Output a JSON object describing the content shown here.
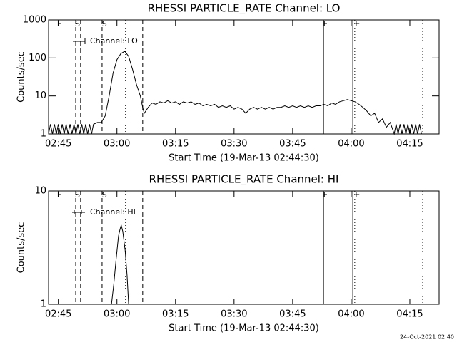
{
  "chart_data": [
    {
      "type": "line",
      "title": "RHESSI PARTICLE_RATE Channel: LO",
      "xlabel": "Start Time (19-Mar-13 02:44:30)",
      "ylabel": "Counts/sec",
      "log_y": true,
      "xlim": [
        162.5,
        262.5
      ],
      "ylim": [
        1,
        1000
      ],
      "xticks": [
        {
          "value": 165,
          "label": "02:45"
        },
        {
          "value": 180,
          "label": "03:00"
        },
        {
          "value": 195,
          "label": "03:15"
        },
        {
          "value": 210,
          "label": "03:30"
        },
        {
          "value": 225,
          "label": "03:45"
        },
        {
          "value": 240,
          "label": "04:00"
        },
        {
          "value": 255,
          "label": "04:15"
        }
      ],
      "yticks": [
        1,
        10,
        100,
        1000
      ],
      "series": [
        {
          "name": "Channel: LO",
          "color": "#000000",
          "x": [
            162.5,
            163,
            163.5,
            164,
            164.5,
            165,
            165.5,
            166,
            166.5,
            167,
            167.5,
            168,
            168.5,
            169,
            169.5,
            170,
            170.5,
            171,
            171.5,
            172,
            172.5,
            173,
            173.5,
            174,
            175,
            176,
            177,
            178,
            179,
            180,
            181,
            182,
            183,
            184,
            185,
            186,
            186.6,
            187,
            188,
            189,
            190,
            191,
            192,
            193,
            194,
            195,
            196,
            197,
            198,
            199,
            200,
            201,
            202,
            203,
            204,
            205,
            206,
            207,
            208,
            209,
            210,
            211,
            212,
            213,
            214,
            215,
            216,
            217,
            218,
            219,
            220,
            221,
            222,
            223,
            224,
            225,
            226,
            227,
            228,
            229,
            230,
            231,
            232,
            233,
            234,
            235,
            236,
            237,
            238,
            239,
            240,
            241,
            242,
            243,
            244,
            245,
            246,
            247,
            248,
            249,
            250,
            251,
            251.5,
            252,
            252.5,
            253,
            253.5,
            254,
            254.5,
            255,
            255.5,
            256,
            256.5,
            257,
            257.5,
            258
          ],
          "values": [
            1,
            1.8,
            1,
            1.8,
            1,
            1.8,
            1,
            1.8,
            1,
            1.8,
            1,
            1.8,
            1,
            1.8,
            1,
            1.8,
            1,
            1.8,
            1,
            1.8,
            1,
            1.8,
            1,
            1.8,
            2,
            2,
            3,
            10,
            40,
            90,
            130,
            150,
            110,
            50,
            20,
            10,
            5,
            3.5,
            5,
            6.5,
            6,
            7,
            6.5,
            7.5,
            6.5,
            7,
            6,
            7,
            6.5,
            7,
            6,
            6.5,
            5.5,
            6,
            5.5,
            6,
            5,
            5.5,
            5,
            5.5,
            4.5,
            5,
            4.5,
            3.5,
            4.5,
            5,
            4.5,
            5,
            4.5,
            5,
            4.5,
            5,
            5,
            5.5,
            5,
            5.5,
            5,
            5.5,
            5,
            5.5,
            5,
            5.5,
            5.5,
            6,
            5.5,
            6.5,
            6,
            7,
            7.5,
            8,
            7.5,
            7,
            6,
            5,
            4,
            3,
            3.5,
            2,
            2.5,
            1.5,
            2,
            1,
            1.8,
            1,
            1.8,
            1,
            1.8,
            1,
            1.8,
            1,
            1.8,
            1,
            1.8,
            1,
            1.8,
            1
          ]
        }
      ],
      "vlines": [
        {
          "x": 169.45,
          "style": "dashed"
        },
        {
          "x": 170.7,
          "style": "dashed"
        },
        {
          "x": 176.2,
          "style": "dashed"
        },
        {
          "x": 182.2,
          "style": "dotted"
        },
        {
          "x": 186.6,
          "style": "dashed"
        },
        {
          "x": 232.9,
          "style": "solid"
        },
        {
          "x": 240.4,
          "style": "solid"
        },
        {
          "x": 240.9,
          "style": "dotted"
        },
        {
          "x": 258.3,
          "style": "dotted"
        }
      ],
      "annotations": [
        {
          "text": "E",
          "x": 165.3
        },
        {
          "text": "S",
          "x": 169.9
        },
        {
          "text": "S",
          "x": 176.8
        },
        {
          "text": "F",
          "x": 233.4
        },
        {
          "text": "E",
          "x": 241.6
        }
      ]
    },
    {
      "type": "line",
      "title": "RHESSI PARTICLE_RATE Channel: HI",
      "xlabel": "Start Time (19-Mar-13 02:44:30)",
      "ylabel": "Counts/sec",
      "log_y": true,
      "xlim": [
        162.5,
        262.5
      ],
      "ylim": [
        1,
        10
      ],
      "xticks": [
        {
          "value": 165,
          "label": "02:45"
        },
        {
          "value": 180,
          "label": "03:00"
        },
        {
          "value": 195,
          "label": "03:15"
        },
        {
          "value": 210,
          "label": "03:30"
        },
        {
          "value": 225,
          "label": "03:45"
        },
        {
          "value": 240,
          "label": "04:00"
        },
        {
          "value": 255,
          "label": "04:15"
        }
      ],
      "yticks": [
        1,
        10
      ],
      "series": [
        {
          "name": "Channel: HI",
          "color": "#000000",
          "x": [
            178.6,
            179.2,
            179.8,
            180.4,
            180.8,
            181.1,
            181.5,
            182.1,
            182.6,
            183.0
          ],
          "values": [
            1,
            1.5,
            2.5,
            4,
            4.6,
            5,
            4.4,
            3,
            1.8,
            1
          ]
        }
      ],
      "vlines": [
        {
          "x": 169.45,
          "style": "dashed"
        },
        {
          "x": 170.7,
          "style": "dashed"
        },
        {
          "x": 176.2,
          "style": "dashed"
        },
        {
          "x": 182.2,
          "style": "dotted"
        },
        {
          "x": 186.6,
          "style": "dashed"
        },
        {
          "x": 232.9,
          "style": "solid"
        },
        {
          "x": 240.4,
          "style": "solid"
        },
        {
          "x": 240.9,
          "style": "dotted"
        },
        {
          "x": 258.3,
          "style": "dotted"
        }
      ],
      "annotations": [
        {
          "text": "E",
          "x": 165.3
        },
        {
          "text": "S",
          "x": 169.9
        },
        {
          "text": "S",
          "x": 176.8
        },
        {
          "text": "F",
          "x": 233.4
        },
        {
          "text": "E",
          "x": 241.6
        }
      ]
    }
  ],
  "footer": "24-Oct-2021 02:40"
}
